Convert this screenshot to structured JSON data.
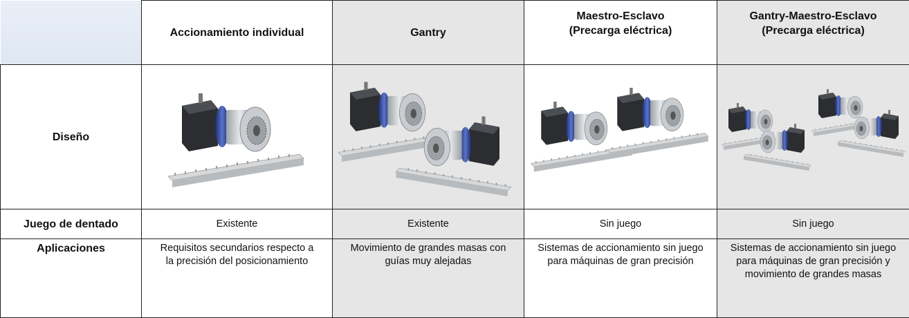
{
  "header": {
    "columns": [
      [
        "Accionamiento individual"
      ],
      [
        "Gantry"
      ],
      [
        "Maestro-Esclavo",
        "(Precarga eléctrica)"
      ],
      [
        "Gantry-Maestro-Esclavo",
        "(Precarga eléctrica)"
      ]
    ]
  },
  "rows": [
    {
      "label": "Diseño"
    },
    {
      "label": "Juego de dentado",
      "cells": [
        "Existente",
        "Existente",
        "Sin juego",
        "Sin juego"
      ]
    },
    {
      "label": "Aplicaciones",
      "cells": [
        "Requisitos secundarios respecto a la precisión del posicionamiento",
        "Movimiento de grandes masas con guías muy alejadas",
        "Sistemas de accionamiento sin juego para máquinas de gran precisión",
        "Sistemas de accionamiento sin juego para máquinas de gran precisión y movimiento de grandes masas"
      ]
    }
  ]
}
